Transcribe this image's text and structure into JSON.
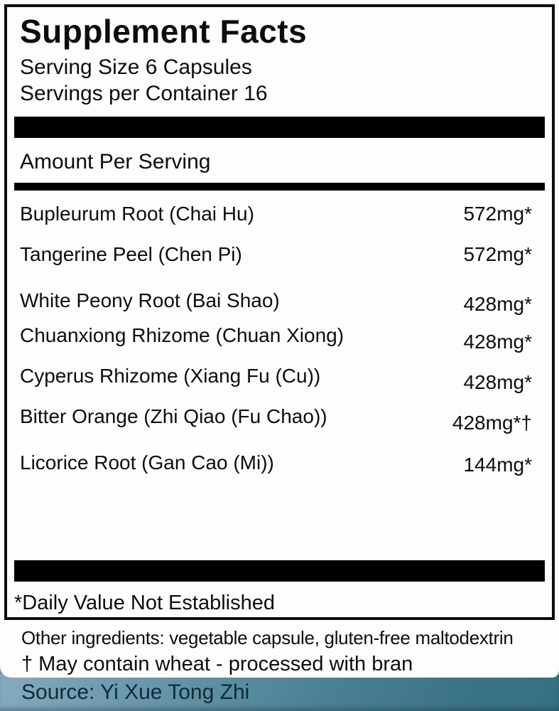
{
  "label": {
    "title": "Supplement Facts",
    "serving_size": "Serving Size 6 Capsules",
    "servings_per_container": "Servings per Container 16",
    "amount_header": "Amount Per Serving",
    "rows": [
      {
        "name": "Bupleurum Root (Chai Hu)",
        "amount": "572mg*"
      },
      {
        "name": "Tangerine Peel (Chen Pi)",
        "amount": "572mg*"
      },
      {
        "name": "White Peony Root (Bai Shao)",
        "amount": "428mg*"
      },
      {
        "name": "Chuanxiong Rhizome (Chuan Xiong)",
        "amount": "428mg*"
      },
      {
        "name": "Cyperus Rhizome (Xiang Fu (Cu))",
        "amount": "428mg*"
      },
      {
        "name": "Bitter Orange (Zhi Qiao (Fu Chao))",
        "amount": "428mg*†"
      },
      {
        "name": "Licorice Root (Gan Cao (Mi))",
        "amount": "144mg*"
      }
    ],
    "daily_value_note": "*Daily Value Not Established",
    "other_ingredients": "Other ingredients: vegetable capsule, gluten-free maltodextrin",
    "allergen_note": "† May contain wheat - processed with bran",
    "source": "Source: Yi Xue Tong Zhi"
  },
  "colors": {
    "text": "#0d0d0d",
    "label_background": "#fdfdfb",
    "divider": "#000000",
    "source_bar_left": "#85aabf",
    "source_bar_right": "#377083",
    "source_text": "#0e2b35"
  }
}
